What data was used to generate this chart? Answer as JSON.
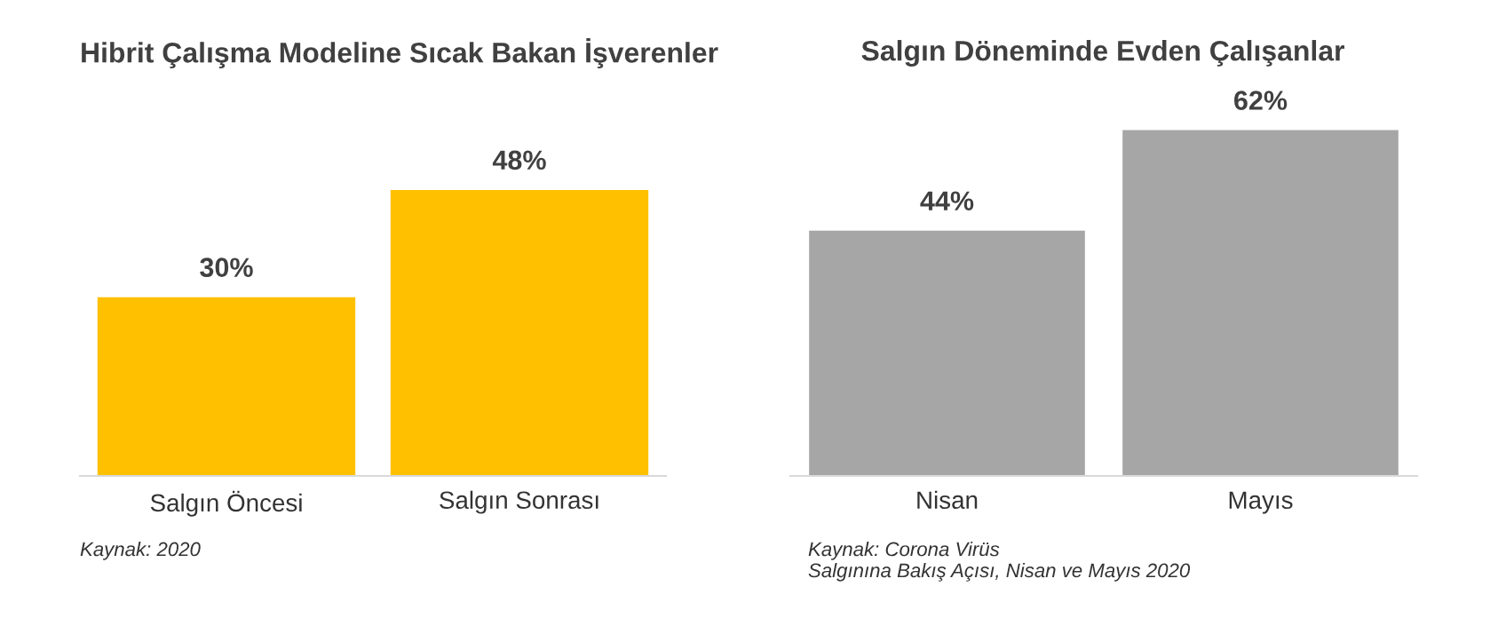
{
  "chart_data": [
    {
      "type": "bar",
      "title": "Hibrit Çalışma Modeline Sıcak Bakan İşverenler",
      "categories": [
        "Salgın Öncesi",
        "Salgın Sonrası"
      ],
      "values": [
        30,
        48
      ],
      "value_labels": [
        "30%",
        "48%"
      ],
      "color": "#ffc000",
      "grid": false,
      "legend": false,
      "annotations": [
        "Kaynak: 2020"
      ]
    },
    {
      "type": "bar",
      "title": "Salgın Döneminde Evden Çalışanlar",
      "categories": [
        "Nisan",
        "Mayıs"
      ],
      "values": [
        44,
        62
      ],
      "value_labels": [
        "44%",
        "62%"
      ],
      "color": "#a6a6a6",
      "grid": false,
      "legend": false,
      "annotations": [
        "Kaynak: Corona Virüs\nSalgınına Bakış Açısı, Nisan ve Mayıs 2020"
      ]
    }
  ]
}
